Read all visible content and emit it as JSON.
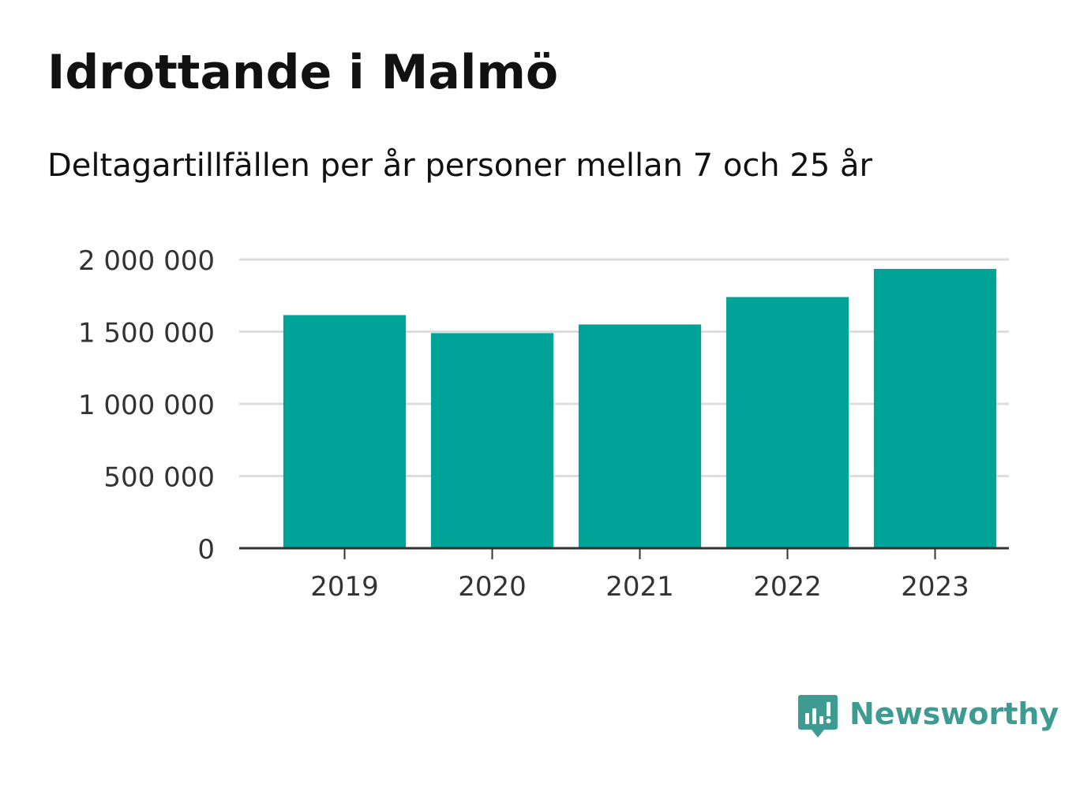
{
  "title": "Idrottande i Malmö",
  "subtitle": "Deltagartillfällen per år personer mellan 7 och 25 år",
  "brand": {
    "name": "Newsworthy",
    "color": "#3d9b92",
    "logo_icon": "bar-chart-speech-bubble-icon"
  },
  "colors": {
    "bar": "#00a398",
    "grid": "#dddddd",
    "axis": "#333333",
    "tick_text": "#333333"
  },
  "chart_data": {
    "type": "bar",
    "categories": [
      "2019",
      "2020",
      "2021",
      "2022",
      "2023"
    ],
    "values": [
      1615000,
      1490000,
      1550000,
      1740000,
      1935000
    ],
    "ylim": [
      0,
      2000000
    ],
    "yticks": [
      0,
      500000,
      1000000,
      1500000,
      2000000
    ],
    "ytick_labels": [
      "0",
      "500 000",
      "1 000 000",
      "1 500 000",
      "2 000 000"
    ],
    "grid": true,
    "legend": "none"
  }
}
